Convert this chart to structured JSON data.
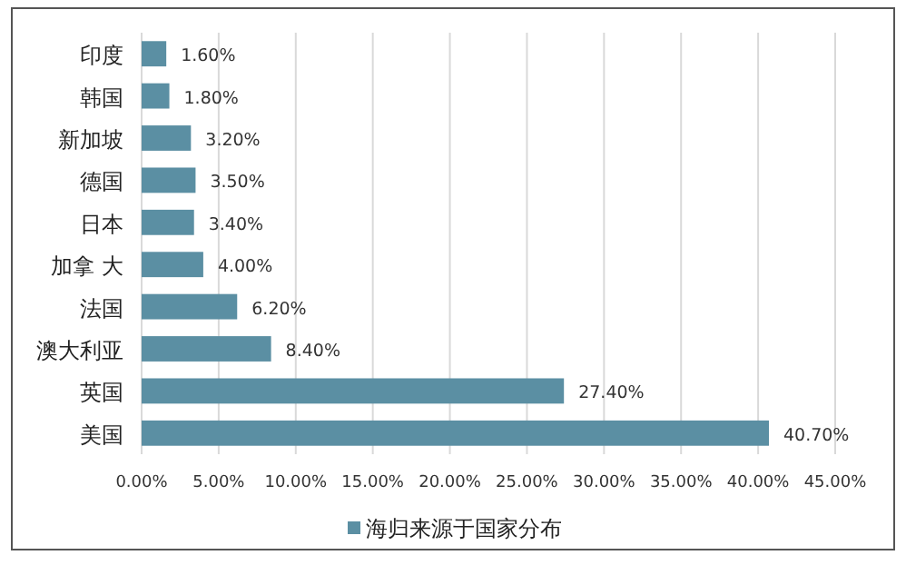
{
  "chart_data": {
    "type": "bar",
    "orientation": "horizontal",
    "categories": [
      "印度",
      "韩国",
      "新加坡",
      "德国",
      "日本",
      "加拿 大",
      "法国",
      "澳大利亚",
      "英国",
      "美国"
    ],
    "series": [
      {
        "name": "海归来源于国家分布",
        "color": "#5b8fa3",
        "values": [
          1.6,
          1.8,
          3.2,
          3.5,
          3.4,
          4.0,
          6.2,
          8.4,
          27.4,
          40.7
        ],
        "value_labels": [
          "1.60%",
          "1.80%",
          "3.20%",
          "3.50%",
          "3.40%",
          "4.00%",
          "6.20%",
          "8.40%",
          "27.40%",
          "40.70%"
        ]
      }
    ],
    "xlim": [
      0,
      45
    ],
    "xticks": [
      {
        "value": 0,
        "label": "0.00%"
      },
      {
        "value": 5,
        "label": "5.00%"
      },
      {
        "value": 10,
        "label": "10.00%"
      },
      {
        "value": 15,
        "label": "15.00%"
      },
      {
        "value": 20,
        "label": "20.00%"
      },
      {
        "value": 25,
        "label": "25.00%"
      },
      {
        "value": 30,
        "label": "30.00%"
      },
      {
        "value": 35,
        "label": "35.00%"
      },
      {
        "value": 40,
        "label": "40.00%"
      },
      {
        "value": 45,
        "label": "45.00%"
      }
    ],
    "grid": "x",
    "legend": "bottom"
  }
}
